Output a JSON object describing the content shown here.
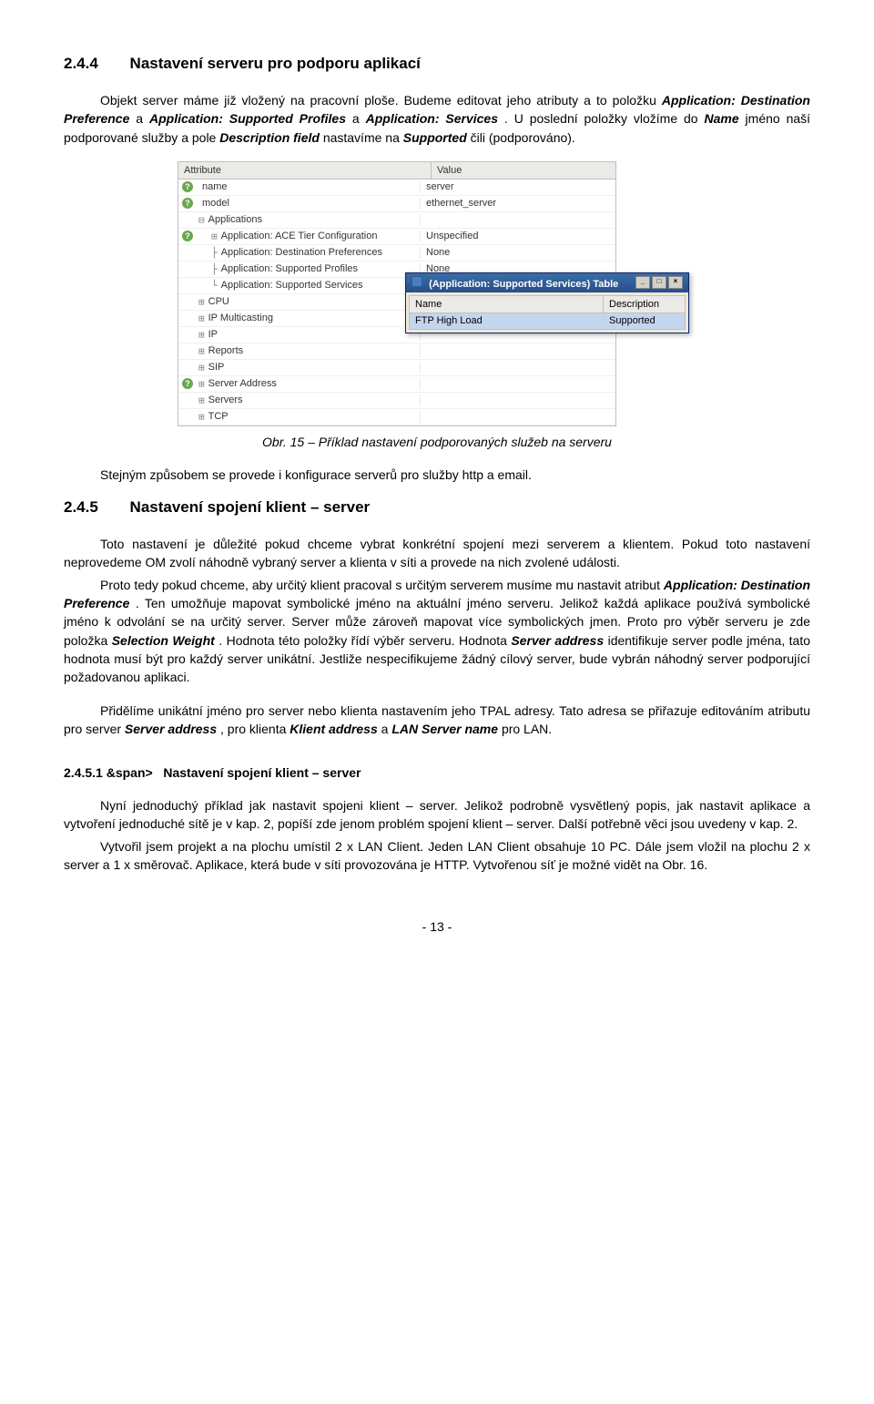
{
  "section_244": {
    "number": "2.4.4",
    "title": "Nastavení serveru pro podporu aplikací"
  },
  "para1_part1": "Objekt server máme již vložený na pracovní ploše. Budeme editovat jeho atributy a to položku ",
  "para1_b1": "Application: Destination Preference",
  "para1_part2": " a ",
  "para1_b2": "Application: Supported Profiles",
  "para1_part3": " a ",
  "para1_b3": "Application: Services",
  "para1_part4": ". U poslední položky vložíme do ",
  "para1_b4": "Name",
  "para1_part5": " jméno naší podporované služby a pole ",
  "para1_b5": "Description field",
  "para1_part6": " nastavíme na ",
  "para1_b6": "Supported",
  "para1_part7": " čili (podporováno).",
  "attr_table": {
    "col1": "Attribute",
    "col2": "Value",
    "rows": [
      {
        "icon": "q",
        "sym": "",
        "indent": 0,
        "label": "name",
        "value": "server",
        "tree": false
      },
      {
        "icon": "q",
        "sym": "",
        "indent": 0,
        "label": "model",
        "value": "ethernet_server",
        "tree": false
      },
      {
        "icon": "",
        "sym": "⊟",
        "indent": 0,
        "label": "Applications",
        "value": "",
        "tree": true
      },
      {
        "icon": "q",
        "sym": "⊞",
        "indent": 1,
        "label": "Application: ACE Tier Configuration",
        "value": "Unspecified",
        "tree": true
      },
      {
        "icon": "",
        "sym": "├",
        "indent": 1,
        "label": "Application: Destination Preferences",
        "value": "None",
        "tree": true
      },
      {
        "icon": "",
        "sym": "├",
        "indent": 1,
        "label": "Application: Supported Profiles",
        "value": "None",
        "tree": true
      },
      {
        "icon": "",
        "sym": "└",
        "indent": 1,
        "label": "Application: Supported Services",
        "value": "(…)",
        "tree": true
      },
      {
        "icon": "",
        "sym": "⊞",
        "indent": 0,
        "label": "CPU",
        "value": "",
        "tree": true
      },
      {
        "icon": "",
        "sym": "⊞",
        "indent": 0,
        "label": "IP Multicasting",
        "value": "",
        "tree": true
      },
      {
        "icon": "",
        "sym": "⊞",
        "indent": 0,
        "label": "IP",
        "value": "",
        "tree": true
      },
      {
        "icon": "",
        "sym": "⊞",
        "indent": 0,
        "label": "Reports",
        "value": "",
        "tree": true
      },
      {
        "icon": "",
        "sym": "⊞",
        "indent": 0,
        "label": "SIP",
        "value": "",
        "tree": true
      },
      {
        "icon": "q",
        "sym": "⊞",
        "indent": 0,
        "label": "Server Address",
        "value": "",
        "tree": true
      },
      {
        "icon": "",
        "sym": "⊞",
        "indent": 0,
        "label": "Servers",
        "value": "",
        "tree": true
      },
      {
        "icon": "",
        "sym": "⊞",
        "indent": 0,
        "label": "TCP",
        "value": "",
        "tree": true
      }
    ]
  },
  "popup": {
    "title": "(Application: Supported Services) Table",
    "col1": "Name",
    "col2": "Description",
    "row_name": "FTP High Load",
    "row_desc": "Supported"
  },
  "caption_15": "Obr. 15 – Příklad nastavení podporovaných služeb na serveru",
  "para2": "Stejným způsobem se provede i konfigurace serverů pro služby http a email.",
  "section_245": {
    "number": "2.4.5",
    "title": "Nastavení spojení klient – server"
  },
  "para3_part1": "Toto nastavení je důležité pokud chceme vybrat konkrétní spojení mezi serverem a klientem. Pokud toto nastavení neprovedeme OM zvolí náhodně vybraný server a klienta v síti a provede na nich zvolené události.",
  "para3_part2a": "Proto tedy pokud chceme, aby určitý klient pracoval s určitým serverem musíme mu nastavit atribut ",
  "para3_b1": "Application: Destination Preference",
  "para3_part2b": ". Ten umožňuje mapovat symbolické jméno na aktuální jméno serveru. Jelikož každá aplikace používá symbolické jméno k odvolání se na určitý server. Server může zároveň mapovat více symbolických jmen. Proto pro výběr serveru je zde položka ",
  "para3_b2": "Selection Weight",
  "para3_part2c": ". Hodnota této položky řídí výběr serveru. Hodnota ",
  "para3_b3": "Server address",
  "para3_part2d": " identifikuje server podle jména, tato hodnota musí být pro každý server unikátní. Jestliže nespecifikujeme žádný cílový server, bude vybrán náhodný server podporující požadovanou aplikaci.",
  "para4_part1": "Přidělíme unikátní jméno pro server nebo klienta nastavením jeho TPAL adresy. Tato adresa se přiřazuje editováním atributu pro server ",
  "para4_b1": "Server address",
  "para4_part2": ", pro klienta ",
  "para4_b2": "Klient address",
  "para4_part3": " a ",
  "para4_b3": "LAN Server name",
  "para4_part4": " pro LAN.",
  "section_2451": {
    "number": "2.4.5.1",
    "title": "Nastavení spojení klient – server"
  },
  "para5": "Nyní jednoduchý příklad jak nastavit spojeni klient – server. Jelikož podrobně vysvětlený popis, jak nastavit aplikace a vytvoření jednoduché sítě je v kap. 2, popíší zde jenom problém spojení klient – server. Další potřebně věci jsou uvedeny v kap. 2.",
  "para6": "Vytvořil jsem projekt a na plochu umístil 2 x LAN Client. Jeden LAN Client obsahuje 10 PC. Dále jsem vložil na plochu 2 x server a 1 x směrovač. Aplikace, která bude v síti provozována je HTTP. Vytvořenou síť je možné vidět na Obr. 16.",
  "page_num": "- 13 -"
}
